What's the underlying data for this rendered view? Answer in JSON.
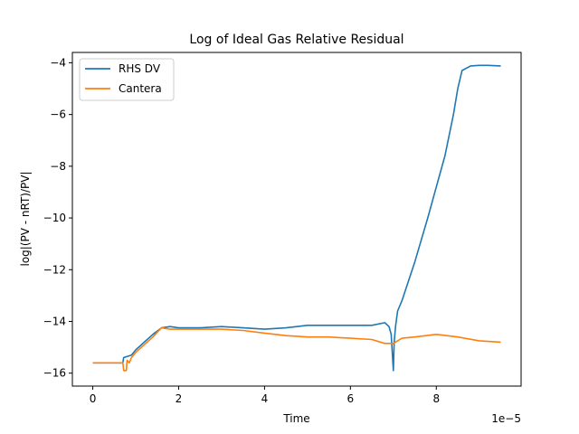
{
  "chart_data": {
    "type": "line",
    "title": "Log of Ideal Gas Relative Residual",
    "xlabel": "Time",
    "ylabel": "log|(PV - nRT)/PV|",
    "x_offset_label": "1e−5",
    "xlim": [
      -0.475,
      9.975
    ],
    "ylim": [
      -16.5,
      -3.6
    ],
    "xticks": [
      0,
      2,
      4,
      6,
      8
    ],
    "yticks": [
      -16,
      -14,
      -12,
      -10,
      -8,
      -6,
      -4
    ],
    "grid": false,
    "legend_position": "upper-left",
    "series": [
      {
        "name": "RHS DV",
        "color": "#1f77b4",
        "x": [
          0,
          0.7,
          0.72,
          0.9,
          1.0,
          1.2,
          1.4,
          1.6,
          1.8,
          2.0,
          2.5,
          3.0,
          3.5,
          4.0,
          4.5,
          5.0,
          5.5,
          6.0,
          6.5,
          6.8,
          6.9,
          6.95,
          7.0,
          7.02,
          7.05,
          7.1,
          7.2,
          7.5,
          7.8,
          8.0,
          8.2,
          8.4,
          8.5,
          8.6,
          8.8,
          9.0,
          9.2,
          9.5
        ],
        "y": [
          -15.6,
          -15.6,
          -15.4,
          -15.3,
          -15.1,
          -14.8,
          -14.5,
          -14.25,
          -14.2,
          -14.25,
          -14.25,
          -14.2,
          -14.25,
          -14.3,
          -14.25,
          -14.15,
          -14.15,
          -14.15,
          -14.15,
          -14.05,
          -14.2,
          -14.5,
          -15.9,
          -14.8,
          -14.2,
          -13.6,
          -13.2,
          -11.7,
          -10.0,
          -8.8,
          -7.6,
          -6.0,
          -5.0,
          -4.3,
          -4.12,
          -4.1,
          -4.1,
          -4.12
        ]
      },
      {
        "name": "Cantera",
        "color": "#ff7f0e",
        "x": [
          0,
          0.7,
          0.72,
          0.78,
          0.8,
          0.85,
          0.9,
          1.0,
          1.2,
          1.4,
          1.6,
          1.8,
          2.0,
          2.5,
          3.0,
          3.5,
          4.0,
          4.5,
          5.0,
          5.5,
          6.0,
          6.5,
          6.8,
          7.0,
          7.2,
          7.5,
          8.0,
          8.5,
          9.0,
          9.5
        ],
        "y": [
          -15.6,
          -15.6,
          -15.9,
          -15.9,
          -15.5,
          -15.6,
          -15.4,
          -15.2,
          -14.9,
          -14.6,
          -14.25,
          -14.3,
          -14.3,
          -14.3,
          -14.3,
          -14.35,
          -14.45,
          -14.55,
          -14.6,
          -14.6,
          -14.65,
          -14.7,
          -14.85,
          -14.85,
          -14.65,
          -14.6,
          -14.5,
          -14.6,
          -14.75,
          -14.8
        ]
      }
    ]
  }
}
